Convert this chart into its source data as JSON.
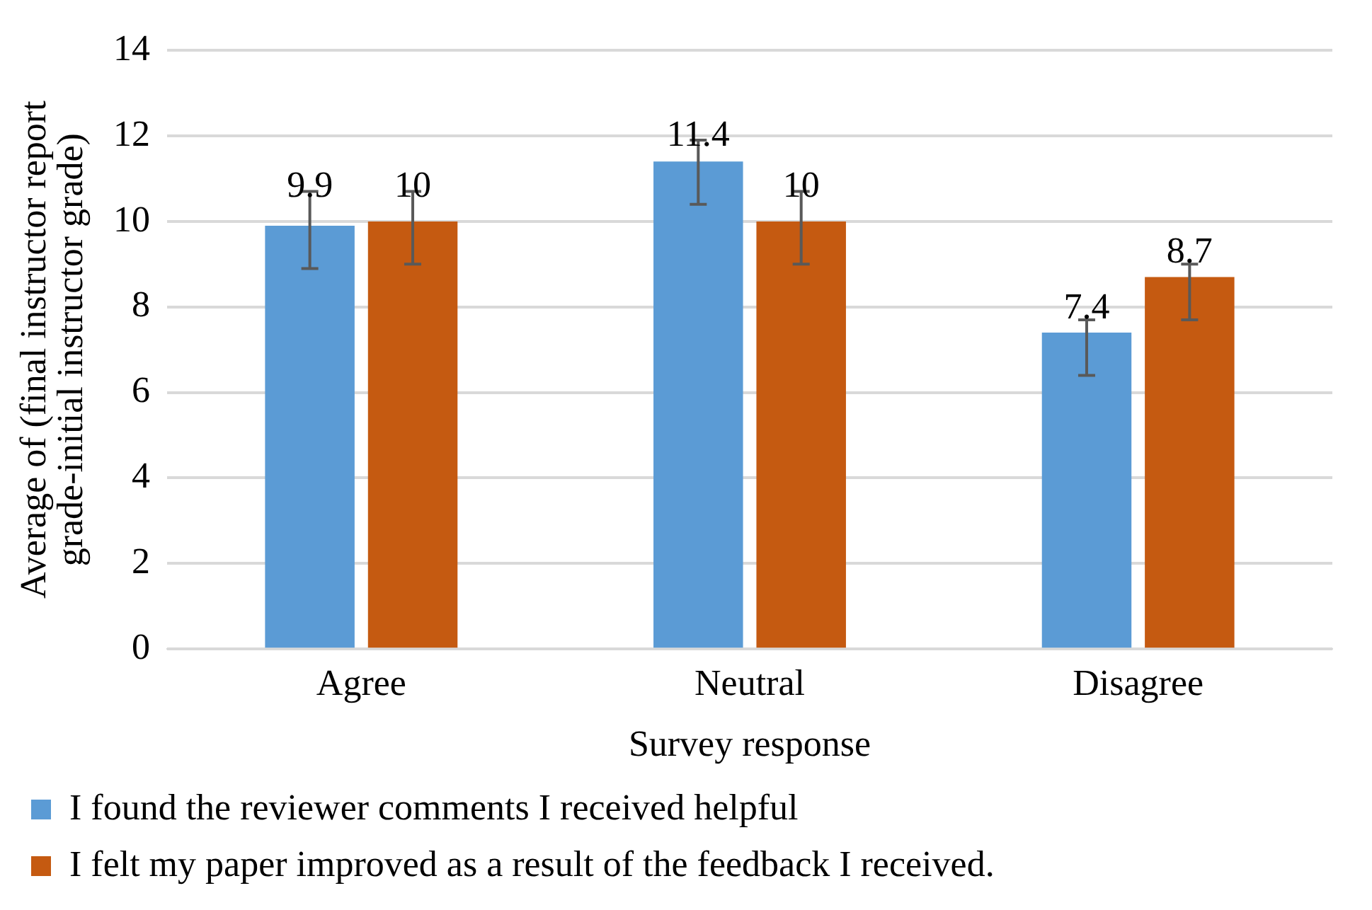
{
  "chart_data": {
    "type": "bar",
    "xlabel": "Survey response",
    "ylabel": "Average of (final instructor report grade-initial instructor grade)",
    "categories": [
      "Agree",
      "Neutral",
      "Disagree"
    ],
    "series": [
      {
        "name": "I found the reviewer comments I received helpful",
        "color": "#5b9bd5",
        "values": [
          9.9,
          11.4,
          7.4
        ],
        "errors": [
          [
            8.9,
            10.7
          ],
          [
            10.4,
            11.9
          ],
          [
            6.4,
            7.7
          ]
        ]
      },
      {
        "name": "I felt my paper improved as a result of the feedback I received.",
        "color": "#c55a11",
        "values": [
          10,
          10,
          8.7
        ],
        "errors": [
          [
            9.0,
            10.7
          ],
          [
            9.0,
            10.7
          ],
          [
            7.7,
            9.0
          ]
        ]
      }
    ],
    "ylim": [
      0,
      14
    ],
    "yticks": [
      0,
      2,
      4,
      6,
      8,
      10,
      12,
      14
    ],
    "grid": "y",
    "legend": "bottom",
    "data_labels": true
  }
}
